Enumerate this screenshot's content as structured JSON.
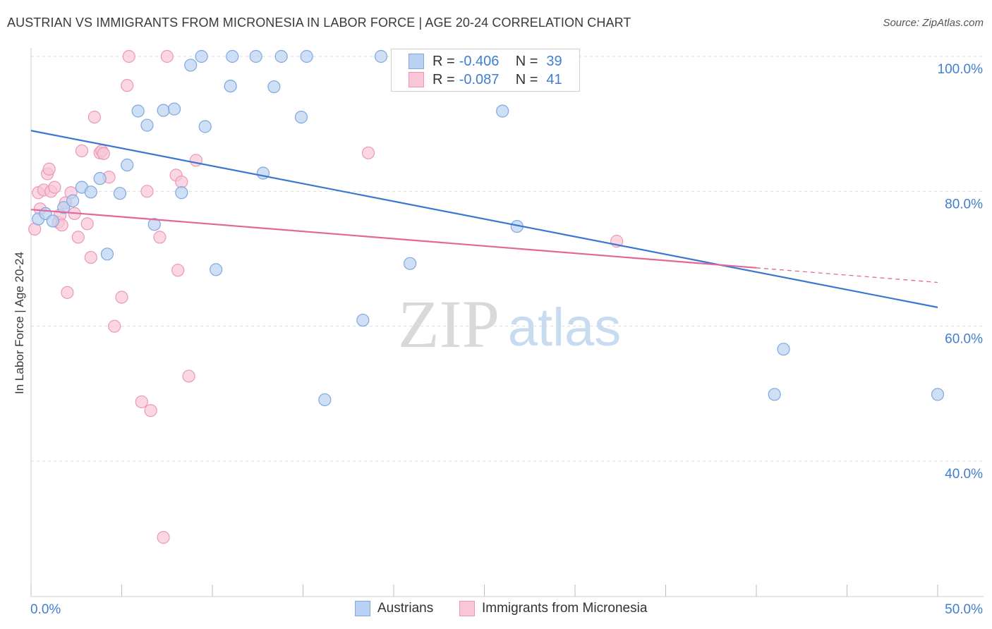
{
  "title": "AUSTRIAN VS IMMIGRANTS FROM MICRONESIA IN LABOR FORCE | AGE 20-24 CORRELATION CHART",
  "source": "Source: ZipAtlas.com",
  "watermark": {
    "zip": "ZIP",
    "atlas": "atlas"
  },
  "colors": {
    "blue": "#3a78d0",
    "blue_fill": "#b9d1f2",
    "blue_stroke": "#7fa8e0",
    "pink": "#e2679a",
    "pink_fill": "#f8c6d6",
    "pink_stroke": "#ec98b6",
    "axis_text": "#3f7fd1",
    "grid": "#dddddd"
  },
  "legend": {
    "r_label": "R =",
    "n_label": "N =",
    "blue": {
      "r": "-0.406",
      "n": "39"
    },
    "pink": {
      "r": "-0.087",
      "n": "41"
    }
  },
  "bottom_legend": {
    "blue": "Austrians",
    "pink": "Immigrants from Micronesia"
  },
  "chart_data": {
    "type": "scatter",
    "title": "AUSTRIAN VS IMMIGRANTS FROM MICRONESIA IN LABOR FORCE | AGE 20-24 CORRELATION CHART",
    "xlabel": "",
    "ylabel": "In Labor Force | Age 20-24",
    "xlim": [
      0,
      50
    ],
    "ylim": [
      20,
      102
    ],
    "x_tick_labels": [
      "0.0%",
      "50.0%"
    ],
    "y_ticks": [
      40,
      60,
      80,
      100
    ],
    "y_tick_labels": [
      "40.0%",
      "60.0%",
      "80.0%",
      "100.0%"
    ],
    "grid": true,
    "legend_position": "top-center",
    "series": [
      {
        "name": "Austrians",
        "color": "#3a78d0",
        "r": -0.406,
        "n": 39,
        "trend": {
          "x": [
            0,
            50
          ],
          "y": [
            89.0,
            62.8
          ],
          "dashed_from": null
        },
        "points": [
          [
            0.4,
            75.9
          ],
          [
            0.8,
            76.7
          ],
          [
            1.2,
            75.6
          ],
          [
            1.8,
            77.6
          ],
          [
            2.3,
            78.6
          ],
          [
            2.8,
            80.6
          ],
          [
            3.3,
            79.9
          ],
          [
            3.8,
            81.9
          ],
          [
            4.2,
            70.7
          ],
          [
            4.9,
            79.7
          ],
          [
            5.3,
            83.9
          ],
          [
            5.9,
            91.9
          ],
          [
            6.4,
            89.8
          ],
          [
            6.8,
            75.1
          ],
          [
            7.3,
            92.0
          ],
          [
            7.9,
            92.2
          ],
          [
            8.3,
            79.8
          ],
          [
            8.8,
            98.7
          ],
          [
            9.4,
            100.0
          ],
          [
            9.6,
            89.6
          ],
          [
            10.2,
            68.4
          ],
          [
            11.0,
            95.6
          ],
          [
            11.1,
            100.0
          ],
          [
            12.4,
            100.0
          ],
          [
            12.8,
            82.7
          ],
          [
            13.4,
            95.5
          ],
          [
            13.8,
            100.0
          ],
          [
            14.9,
            91.0
          ],
          [
            15.2,
            100.0
          ],
          [
            16.2,
            49.1
          ],
          [
            18.3,
            60.9
          ],
          [
            19.3,
            100.0
          ],
          [
            20.9,
            69.3
          ],
          [
            25.0,
            100.0
          ],
          [
            26.0,
            91.9
          ],
          [
            26.8,
            74.8
          ],
          [
            41.0,
            49.9
          ],
          [
            41.5,
            56.6
          ],
          [
            50.0,
            49.9
          ]
        ]
      },
      {
        "name": "Immigrants from Micronesia",
        "color": "#e2679a",
        "r": -0.087,
        "n": 41,
        "trend": {
          "x": [
            0,
            50
          ],
          "y": [
            77.3,
            66.5
          ],
          "dashed_from": 40.0
        },
        "points": [
          [
            0.2,
            74.4
          ],
          [
            0.4,
            79.8
          ],
          [
            0.5,
            77.4
          ],
          [
            0.7,
            80.2
          ],
          [
            0.9,
            82.6
          ],
          [
            1.0,
            83.3
          ],
          [
            1.1,
            80.0
          ],
          [
            1.3,
            80.6
          ],
          [
            1.5,
            75.4
          ],
          [
            1.6,
            76.5
          ],
          [
            1.7,
            75.0
          ],
          [
            1.9,
            78.3
          ],
          [
            2.0,
            65.0
          ],
          [
            2.2,
            79.8
          ],
          [
            2.4,
            76.7
          ],
          [
            2.6,
            73.2
          ],
          [
            2.8,
            86.0
          ],
          [
            3.1,
            75.2
          ],
          [
            3.3,
            70.2
          ],
          [
            3.5,
            91.0
          ],
          [
            3.8,
            85.7
          ],
          [
            3.9,
            86.0
          ],
          [
            4.0,
            85.6
          ],
          [
            4.3,
            82.1
          ],
          [
            4.6,
            60.0
          ],
          [
            5.0,
            64.3
          ],
          [
            5.3,
            95.7
          ],
          [
            5.4,
            100.0
          ],
          [
            6.1,
            48.8
          ],
          [
            6.4,
            80.0
          ],
          [
            6.6,
            47.5
          ],
          [
            7.1,
            73.2
          ],
          [
            7.3,
            28.7
          ],
          [
            7.5,
            100.0
          ],
          [
            8.0,
            82.4
          ],
          [
            8.1,
            68.3
          ],
          [
            8.3,
            81.4
          ],
          [
            8.7,
            52.6
          ],
          [
            9.1,
            84.6
          ],
          [
            18.6,
            85.7
          ],
          [
            32.3,
            72.6
          ]
        ]
      }
    ]
  }
}
